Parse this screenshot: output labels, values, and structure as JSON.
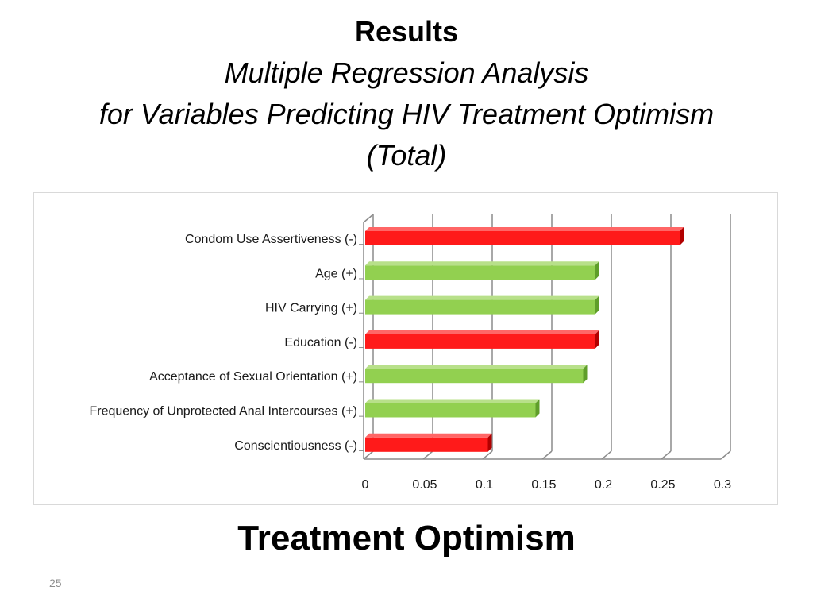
{
  "slide": {
    "title": "Results",
    "subtitle_line1": "Multiple Regression Analysis",
    "subtitle_line2": "for Variables Predicting HIV Treatment Optimism",
    "subtitle_line3": "(Total)",
    "footer_title": "Treatment Optimism",
    "page_number": "25"
  },
  "colors": {
    "negative": "#ff1a1a",
    "positive": "#92d050",
    "grid": "#8c8c8c"
  },
  "chart_data": {
    "type": "bar",
    "orientation": "horizontal",
    "title": "",
    "xlabel": "",
    "ylabel": "",
    "xlim": [
      0,
      0.3
    ],
    "xticks": [
      0,
      0.05,
      0.1,
      0.15,
      0.2,
      0.25,
      0.3
    ],
    "xtick_labels": [
      "0",
      "0.05",
      "0.1",
      "0.15",
      "0.2",
      "0.25",
      "0.3"
    ],
    "grid": true,
    "categories": [
      "Condom Use Assertiveness (-)",
      "Age (+)",
      "HIV Carrying (+)",
      "Education (-)",
      "Acceptance of Sexual Orientation (+)",
      "Frequency of Unprotected Anal Intercourses (+)",
      "Conscientiousness (-)"
    ],
    "values": [
      0.264,
      0.193,
      0.193,
      0.193,
      0.183,
      0.143,
      0.103
    ],
    "signs": [
      "-",
      "+",
      "+",
      "-",
      "+",
      "+",
      "-"
    ]
  }
}
